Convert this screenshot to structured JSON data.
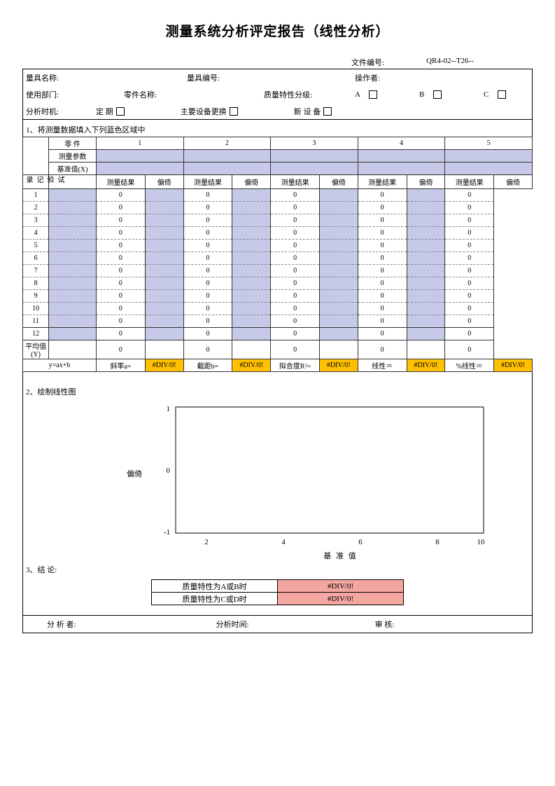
{
  "title": "测量系统分析评定报告（线性分析）",
  "docnum_label": "文件编号:",
  "docnum_value": "QR4-02--T26--",
  "info": {
    "gauge_name_label": "量具名称:",
    "gauge_no_label": "量具编号:",
    "operator_label": "操作者:",
    "dept_label": "使用部门:",
    "part_name_label": "零件名称:",
    "quality_class_label": "质量特性分级:",
    "class_a": "A",
    "class_b": "B",
    "class_c": "C",
    "timing_label": "分析时机:",
    "periodic": "定  期",
    "equip_change": "主要设备更换",
    "new_equip": "新  设  备"
  },
  "section1_label": "1、将测量数据填入下列蓝色区域中",
  "table": {
    "part_label": "零  件",
    "param_label": "测量参数",
    "ref_label": "基准值(X)",
    "trial_label": "试验记录",
    "result_label": "测量结果",
    "bias_label": "偏倚",
    "avg_label": "平均值(Y)",
    "parts": [
      "1",
      "2",
      "3",
      "4",
      "5"
    ],
    "rows": [
      "1",
      "2",
      "3",
      "4",
      "5",
      "6",
      "7",
      "8",
      "9",
      "10",
      "11",
      "12"
    ],
    "zero": "0"
  },
  "formula": {
    "eq": "y=ax+b",
    "slope": "斜率a=",
    "intercept": "截距b=",
    "r2": "拟合度R²=",
    "lin": "线性＝",
    "pct_lin": "%线性＝",
    "err": "#DIV/0!"
  },
  "section2_label": "2、绘制线性图",
  "chart": {
    "y_label": "偏倚",
    "x_label": "基    准    值",
    "y_ticks": [
      "1",
      "0",
      "-1"
    ],
    "x_ticks": [
      "2",
      "4",
      "6",
      "8",
      "10"
    ],
    "plot_bg": "#ffffff",
    "border_color": "#000000"
  },
  "section3_label": "3、结  论:",
  "conclusion": {
    "row1_label": "质量特性为A或B时",
    "row2_label": "质量特性为C或D时",
    "err": "#DIV/0!"
  },
  "sign": {
    "analyst": "分  析  者:",
    "time": "分析时间:",
    "review": "审    核:"
  },
  "colors": {
    "blue": "#c6cae8",
    "orange": "#ffc000",
    "pink": "#f4a6a0"
  }
}
